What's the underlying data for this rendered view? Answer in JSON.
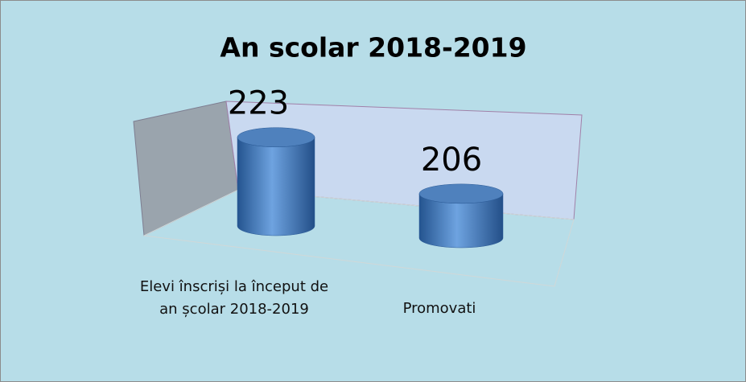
{
  "chart_data": {
    "type": "cylinder",
    "title": "An scolar 2018-2019",
    "categories": [
      "Elevi înscriși la început de an școlar 2018-2019",
      "Promovati"
    ],
    "values": [
      223,
      206
    ],
    "color": "#4f81bd",
    "ylim": [
      189,
      230
    ]
  }
}
